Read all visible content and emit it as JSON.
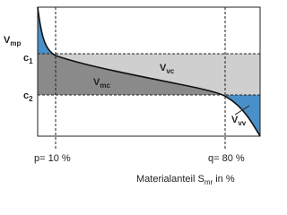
{
  "labels": {
    "vmp": {
      "main": "V",
      "sub": "mp"
    },
    "c1": {
      "main": "c",
      "sub": "1"
    },
    "vmc": {
      "main": "V",
      "sub": "mc"
    },
    "vvc": {
      "main": "V",
      "sub": "vc"
    },
    "c2": {
      "main": "c",
      "sub": "2"
    },
    "vvv": {
      "main": "V",
      "sub": "vv"
    },
    "p": "p= 10 %",
    "q": "q= 80 %",
    "axis": {
      "main": "Materialanteil S",
      "sub": "mr",
      "rest": " in %"
    }
  }
}
